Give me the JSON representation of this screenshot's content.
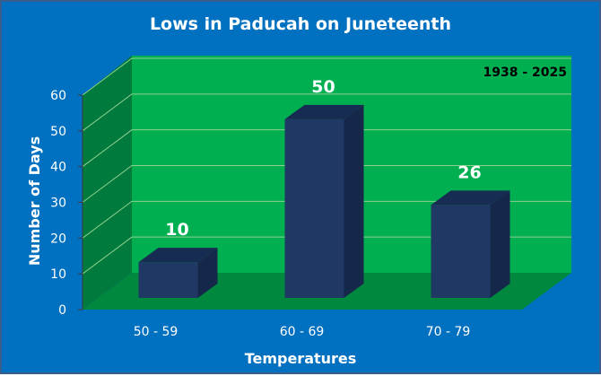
{
  "chart_data": {
    "type": "bar",
    "title": "Lows in Paducah on Juneteenth",
    "annotation": "1938 - 2025",
    "xlabel": "Temperatures",
    "ylabel": "Number of Days",
    "categories": [
      "50 - 59",
      "60 - 69",
      "70 - 79"
    ],
    "values": [
      10,
      50,
      26
    ],
    "ylim": [
      0,
      60
    ],
    "yticks": [
      "0",
      "10",
      "20",
      "30",
      "40",
      "50",
      "60"
    ],
    "grid": true,
    "style": "3d-column",
    "colors": {
      "background": "#0070c0",
      "wall": "#00b050",
      "side_wall": "#007a3d",
      "floor": "#00883f",
      "bar": "#1f3864",
      "text": "#ffffff"
    }
  }
}
